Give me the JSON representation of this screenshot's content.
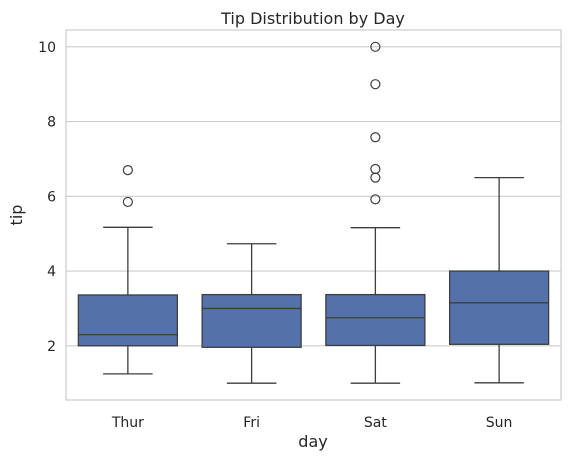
{
  "chart_data": {
    "type": "box",
    "title": "Tip Distribution by Day",
    "xlabel": "day",
    "ylabel": "tip",
    "ylim": [
      0.55,
      10.45
    ],
    "yticks": [
      2,
      4,
      6,
      8,
      10
    ],
    "grid": "horizontal",
    "box_color": "#5471a9",
    "line_color": "#3d3d3d",
    "categories": [
      "Thur",
      "Fri",
      "Sat",
      "Sun"
    ],
    "boxes": [
      {
        "category": "Thur",
        "whisker_low": 1.25,
        "q1": 2.0,
        "median": 2.3,
        "q3": 3.36,
        "whisker_high": 5.17,
        "outliers": [
          5.85,
          6.7
        ]
      },
      {
        "category": "Fri",
        "whisker_low": 1.0,
        "q1": 1.96,
        "median": 3.0,
        "q3": 3.37,
        "whisker_high": 4.73,
        "outliers": []
      },
      {
        "category": "Sat",
        "whisker_low": 1.0,
        "q1": 2.01,
        "median": 2.75,
        "q3": 3.37,
        "whisker_high": 5.16,
        "outliers": [
          5.92,
          6.5,
          6.73,
          7.58,
          9.0,
          10.0
        ]
      },
      {
        "category": "Sun",
        "whisker_low": 1.01,
        "q1": 2.04,
        "median": 3.15,
        "q3": 4.0,
        "whisker_high": 6.5,
        "outliers": []
      }
    ]
  }
}
